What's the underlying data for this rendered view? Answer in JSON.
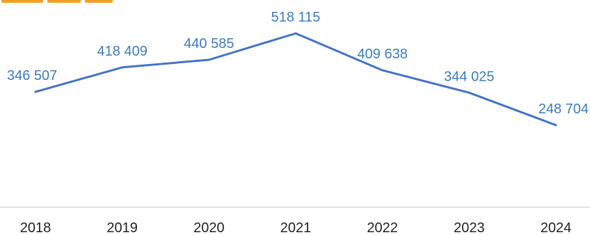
{
  "colors": {
    "series_line": "#4472c4",
    "data_label": "#3c7bc0",
    "axis_line": "#d9d9d9",
    "tick_label": "#222222",
    "cut_off_title_fragment": "#f0a020"
  },
  "chart_data": {
    "type": "line",
    "x": [
      "2018",
      "2019",
      "2020",
      "2021",
      "2022",
      "2023",
      "2024"
    ],
    "series": [
      {
        "values": [
          346507,
          418409,
          440585,
          518115,
          409638,
          344025,
          248704
        ],
        "labels": [
          "346 507",
          "418 409",
          "440 585",
          "518 115",
          "409 638",
          "344 025",
          "248 704"
        ]
      }
    ],
    "title": "",
    "xlabel": "",
    "ylabel": "",
    "y_axis_visible": false,
    "grid": false,
    "legend": "none"
  }
}
